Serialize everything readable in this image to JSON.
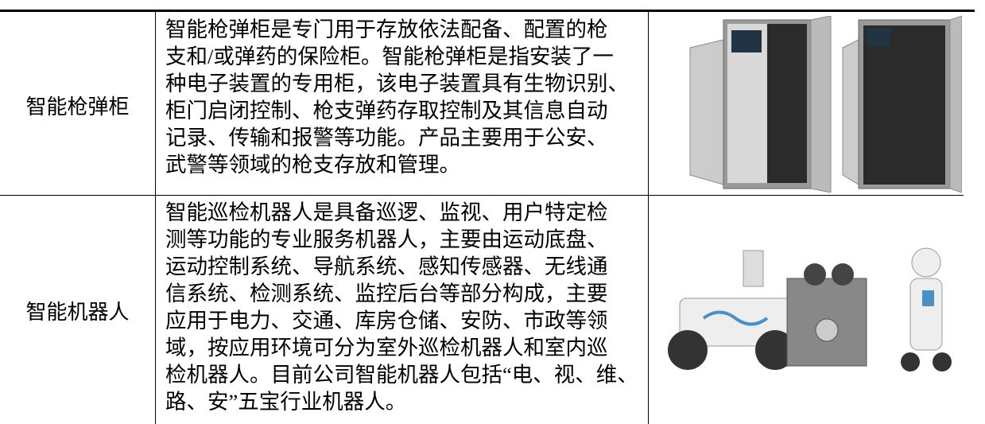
{
  "table": {
    "rows": [
      {
        "label": "智能枪弹柜",
        "description": [
          "智能枪弹柜是专门用于存放依法配备、配置的枪",
          "支和/或弹药的保险柜。智能枪弹柜是指安装了一",
          "种电子装置的专用柜，该电子装置具有生物识别、",
          "柜门启闭控制、枪支弹药存取控制及其信息自动",
          "记录、传输和报警等功能。产品主要用于公安、",
          "武警等领域的枪支存放和管理。"
        ]
      },
      {
        "label": "智能机器人",
        "description": [
          "智能巡检机器人是具备巡逻、监视、用户特定检",
          "测等功能的专业服务机器人，主要由运动底盘、",
          "运动控制系统、导航系统、感知传感器、无线通",
          "信系统、检测系统、监控后台等部分构成，主要",
          "应用于电力、交通、库房仓储、安防、市政等领",
          "域，按应用环境可分为室外巡检机器人和室内巡",
          "检机器人。目前公司智能机器人包括“电、视、维、",
          "路、安”五宝行业机器人。"
        ]
      }
    ]
  }
}
